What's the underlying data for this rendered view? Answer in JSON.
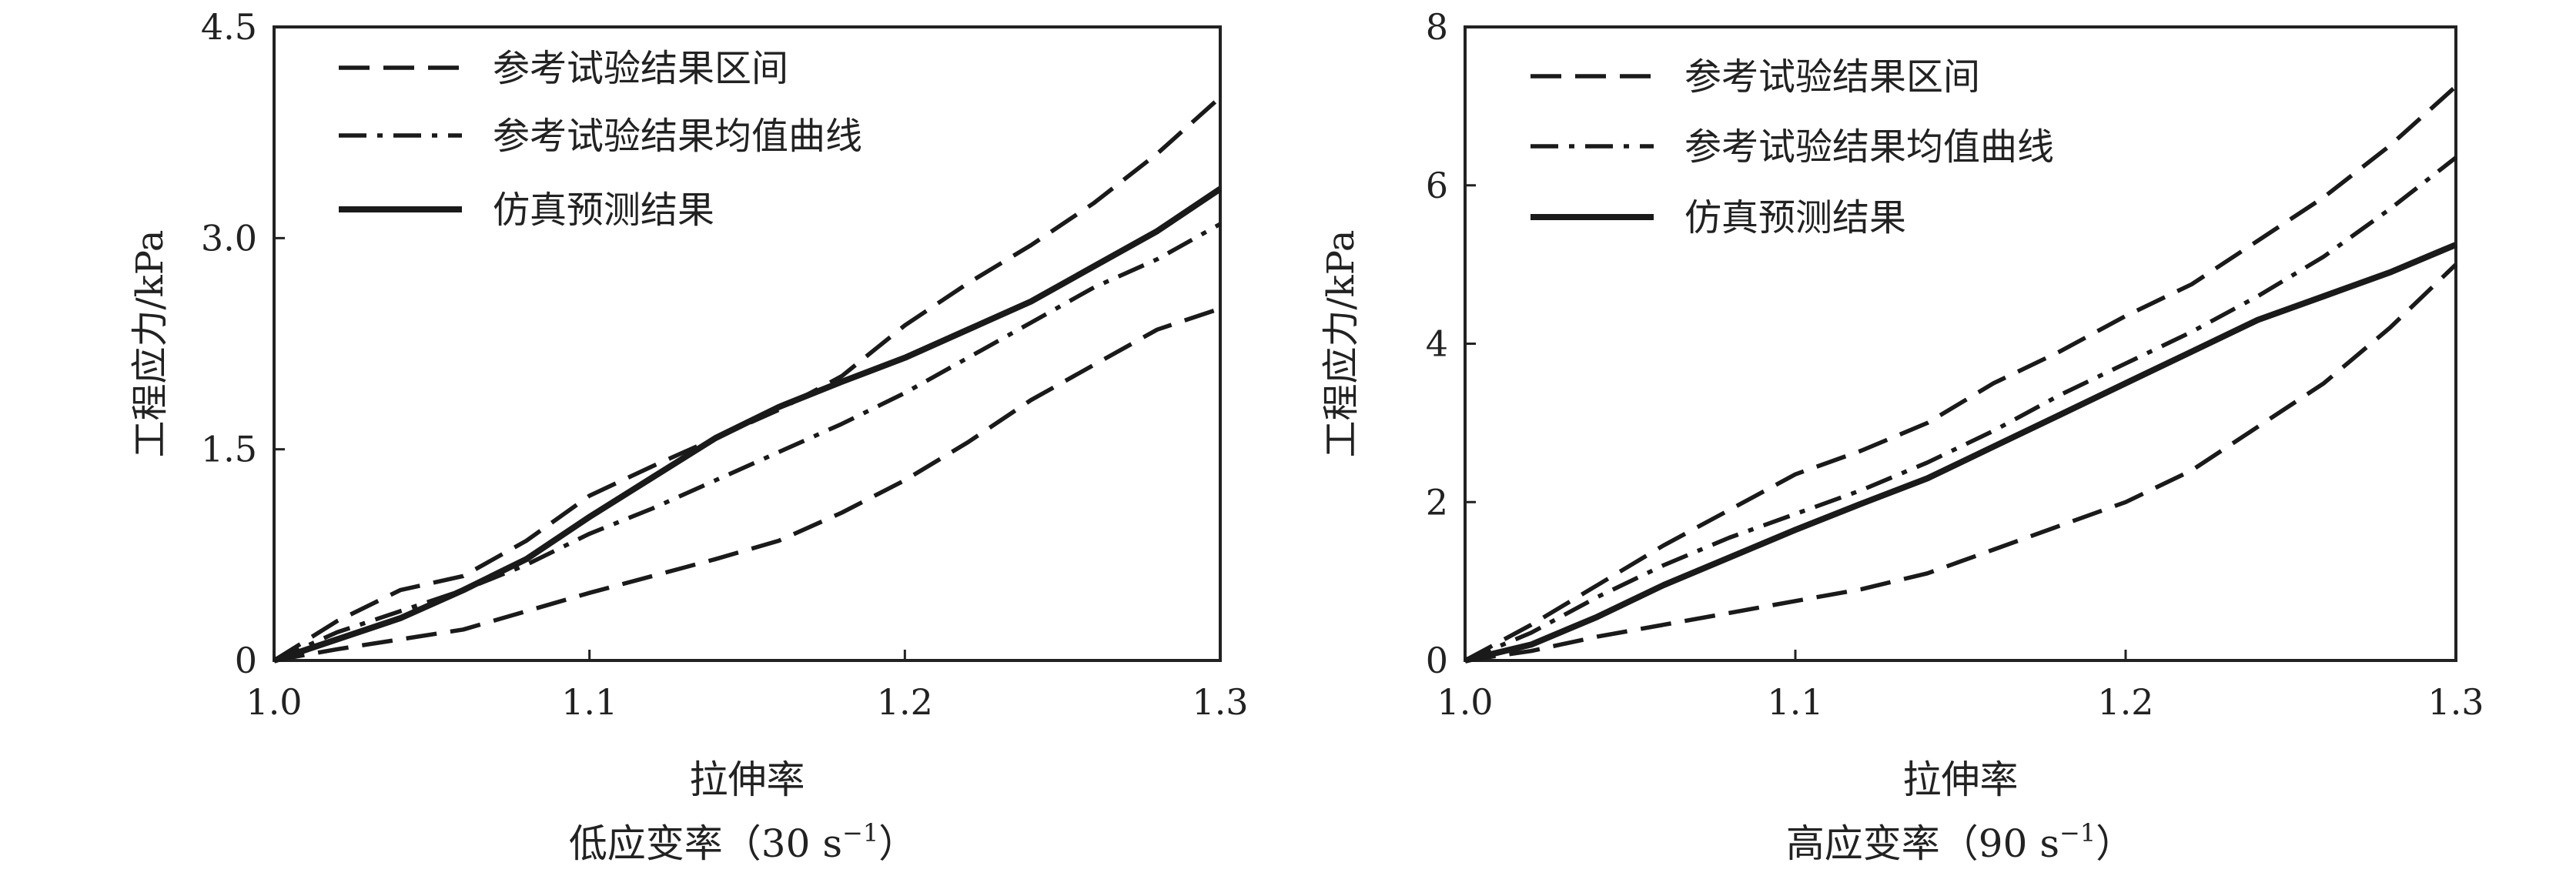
{
  "chart_data": [
    {
      "type": "line",
      "caption": "低应变率（30 s",
      "caption_sup": "−1",
      "caption_close": "）",
      "xlabel": "拉伸率",
      "ylabel": "工程应力/kPa",
      "xlim": [
        1.0,
        1.3
      ],
      "ylim": [
        0,
        4.5
      ],
      "xticks": [
        "1.0",
        "1.1",
        "1.2",
        "1.3"
      ],
      "xtick_values": [
        1.0,
        1.1,
        1.2,
        1.3
      ],
      "yticks": [
        "0",
        "1.5",
        "3.0",
        "4.5"
      ],
      "ytick_values": [
        0,
        1.5,
        3.0,
        4.5
      ],
      "grid": false,
      "legend": "top-left",
      "legend_entries": [
        "参考试验结果区间",
        "参考试验结果均值曲线",
        "仿真预测结果"
      ],
      "series": [
        {
          "name": "参考试验结果区间",
          "style": "dashed",
          "points": [
            [
              1.0,
              0
            ],
            [
              1.02,
              0.28
            ],
            [
              1.04,
              0.5
            ],
            [
              1.06,
              0.6
            ],
            [
              1.08,
              0.85
            ],
            [
              1.1,
              1.17
            ],
            [
              1.12,
              1.38
            ],
            [
              1.14,
              1.58
            ],
            [
              1.16,
              1.78
            ],
            [
              1.18,
              2.02
            ],
            [
              1.2,
              2.38
            ],
            [
              1.22,
              2.68
            ],
            [
              1.24,
              2.95
            ],
            [
              1.26,
              3.25
            ],
            [
              1.28,
              3.6
            ],
            [
              1.3,
              4.0
            ]
          ]
        },
        {
          "style": "dashed",
          "points": [
            [
              1.0,
              0
            ],
            [
              1.02,
              0.08
            ],
            [
              1.04,
              0.15
            ],
            [
              1.06,
              0.22
            ],
            [
              1.08,
              0.35
            ],
            [
              1.1,
              0.48
            ],
            [
              1.12,
              0.6
            ],
            [
              1.14,
              0.72
            ],
            [
              1.16,
              0.85
            ],
            [
              1.18,
              1.05
            ],
            [
              1.2,
              1.28
            ],
            [
              1.22,
              1.55
            ],
            [
              1.24,
              1.85
            ],
            [
              1.26,
              2.1
            ],
            [
              1.28,
              2.35
            ],
            [
              1.3,
              2.5
            ]
          ]
        },
        {
          "name": "参考试验结果均值曲线",
          "style": "dashdot",
          "points": [
            [
              1.0,
              0
            ],
            [
              1.02,
              0.2
            ],
            [
              1.04,
              0.35
            ],
            [
              1.06,
              0.5
            ],
            [
              1.08,
              0.68
            ],
            [
              1.1,
              0.9
            ],
            [
              1.12,
              1.08
            ],
            [
              1.14,
              1.28
            ],
            [
              1.16,
              1.48
            ],
            [
              1.18,
              1.68
            ],
            [
              1.2,
              1.9
            ],
            [
              1.22,
              2.15
            ],
            [
              1.24,
              2.4
            ],
            [
              1.26,
              2.65
            ],
            [
              1.28,
              2.85
            ],
            [
              1.3,
              3.1
            ]
          ]
        },
        {
          "name": "仿真预测结果",
          "style": "solid",
          "points": [
            [
              1.0,
              0
            ],
            [
              1.02,
              0.15
            ],
            [
              1.04,
              0.3
            ],
            [
              1.06,
              0.5
            ],
            [
              1.08,
              0.72
            ],
            [
              1.1,
              1.02
            ],
            [
              1.12,
              1.3
            ],
            [
              1.14,
              1.58
            ],
            [
              1.16,
              1.8
            ],
            [
              1.18,
              1.98
            ],
            [
              1.2,
              2.15
            ],
            [
              1.22,
              2.35
            ],
            [
              1.24,
              2.55
            ],
            [
              1.26,
              2.8
            ],
            [
              1.28,
              3.05
            ],
            [
              1.3,
              3.35
            ]
          ]
        }
      ]
    },
    {
      "type": "line",
      "caption": "高应变率（90 s",
      "caption_sup": "−1",
      "caption_close": "）",
      "xlabel": "拉伸率",
      "ylabel": "工程应力/kPa",
      "xlim": [
        1.0,
        1.3
      ],
      "ylim": [
        0,
        8
      ],
      "xticks": [
        "1.0",
        "1.1",
        "1.2",
        "1.3"
      ],
      "xtick_values": [
        1.0,
        1.1,
        1.2,
        1.3
      ],
      "yticks": [
        "0",
        "2",
        "4",
        "6",
        "8"
      ],
      "ytick_values": [
        0,
        2,
        4,
        6,
        8
      ],
      "grid": false,
      "legend": "top-left",
      "legend_entries": [
        "参考试验结果区间",
        "参考试验结果均值曲线",
        "仿真预测结果"
      ],
      "series": [
        {
          "name": "参考试验结果区间",
          "style": "dashed",
          "points": [
            [
              1.0,
              0
            ],
            [
              1.02,
              0.45
            ],
            [
              1.04,
              0.95
            ],
            [
              1.06,
              1.45
            ],
            [
              1.08,
              1.9
            ],
            [
              1.1,
              2.35
            ],
            [
              1.12,
              2.65
            ],
            [
              1.14,
              3.0
            ],
            [
              1.16,
              3.5
            ],
            [
              1.18,
              3.9
            ],
            [
              1.2,
              4.35
            ],
            [
              1.22,
              4.75
            ],
            [
              1.24,
              5.3
            ],
            [
              1.26,
              5.85
            ],
            [
              1.28,
              6.5
            ],
            [
              1.3,
              7.25
            ]
          ]
        },
        {
          "style": "dashed",
          "points": [
            [
              1.0,
              0
            ],
            [
              1.02,
              0.12
            ],
            [
              1.04,
              0.3
            ],
            [
              1.06,
              0.45
            ],
            [
              1.08,
              0.6
            ],
            [
              1.1,
              0.75
            ],
            [
              1.12,
              0.9
            ],
            [
              1.14,
              1.1
            ],
            [
              1.16,
              1.4
            ],
            [
              1.18,
              1.7
            ],
            [
              1.2,
              2.0
            ],
            [
              1.22,
              2.4
            ],
            [
              1.24,
              2.95
            ],
            [
              1.26,
              3.5
            ],
            [
              1.28,
              4.2
            ],
            [
              1.3,
              5.0
            ]
          ]
        },
        {
          "name": "参考试验结果均值曲线",
          "style": "dashdot",
          "points": [
            [
              1.0,
              0
            ],
            [
              1.02,
              0.35
            ],
            [
              1.04,
              0.8
            ],
            [
              1.06,
              1.2
            ],
            [
              1.08,
              1.55
            ],
            [
              1.1,
              1.85
            ],
            [
              1.12,
              2.15
            ],
            [
              1.14,
              2.5
            ],
            [
              1.16,
              2.9
            ],
            [
              1.18,
              3.35
            ],
            [
              1.2,
              3.75
            ],
            [
              1.22,
              4.15
            ],
            [
              1.24,
              4.6
            ],
            [
              1.26,
              5.1
            ],
            [
              1.28,
              5.7
            ],
            [
              1.3,
              6.35
            ]
          ]
        },
        {
          "name": "仿真预测结果",
          "style": "solid",
          "points": [
            [
              1.0,
              0
            ],
            [
              1.02,
              0.2
            ],
            [
              1.04,
              0.55
            ],
            [
              1.06,
              0.95
            ],
            [
              1.08,
              1.3
            ],
            [
              1.1,
              1.65
            ],
            [
              1.12,
              1.98
            ],
            [
              1.14,
              2.3
            ],
            [
              1.16,
              2.7
            ],
            [
              1.18,
              3.1
            ],
            [
              1.2,
              3.5
            ],
            [
              1.22,
              3.9
            ],
            [
              1.24,
              4.3
            ],
            [
              1.26,
              4.6
            ],
            [
              1.28,
              4.9
            ],
            [
              1.3,
              5.25
            ]
          ]
        }
      ]
    }
  ]
}
